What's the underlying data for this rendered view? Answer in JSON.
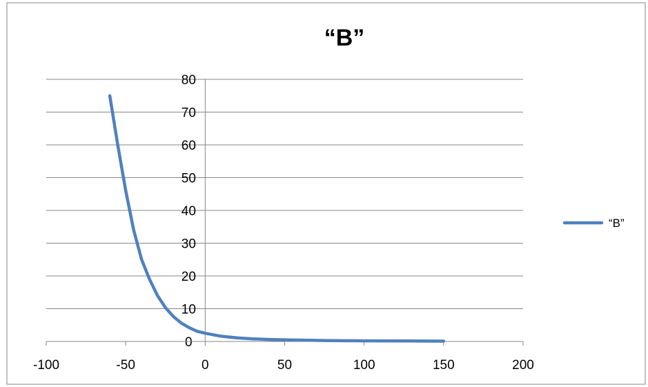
{
  "chart_data": {
    "type": "line",
    "title": "“B”",
    "xlabel": "",
    "ylabel": "",
    "xlim": [
      -100,
      200
    ],
    "ylim": [
      0,
      80
    ],
    "x_ticks": [
      -100,
      -50,
      0,
      50,
      100,
      150,
      200
    ],
    "y_ticks": [
      0,
      10,
      20,
      30,
      40,
      50,
      60,
      70,
      80
    ],
    "grid": "horizontal",
    "legend": "right",
    "series": [
      {
        "name": "“B”",
        "color": "#4F81BD",
        "x": [
          -60,
          -55,
          -50,
          -45,
          -40,
          -35,
          -30,
          -25,
          -20,
          -15,
          -10,
          -5,
          0,
          10,
          20,
          30,
          40,
          50,
          75,
          100,
          125,
          150
        ],
        "y": [
          75,
          60,
          46,
          34,
          25,
          19,
          14,
          10.3,
          7.6,
          5.6,
          4.2,
          3.1,
          2.5,
          1.6,
          1.1,
          0.8,
          0.6,
          0.5,
          0.3,
          0.2,
          0.15,
          0.1
        ]
      }
    ]
  }
}
